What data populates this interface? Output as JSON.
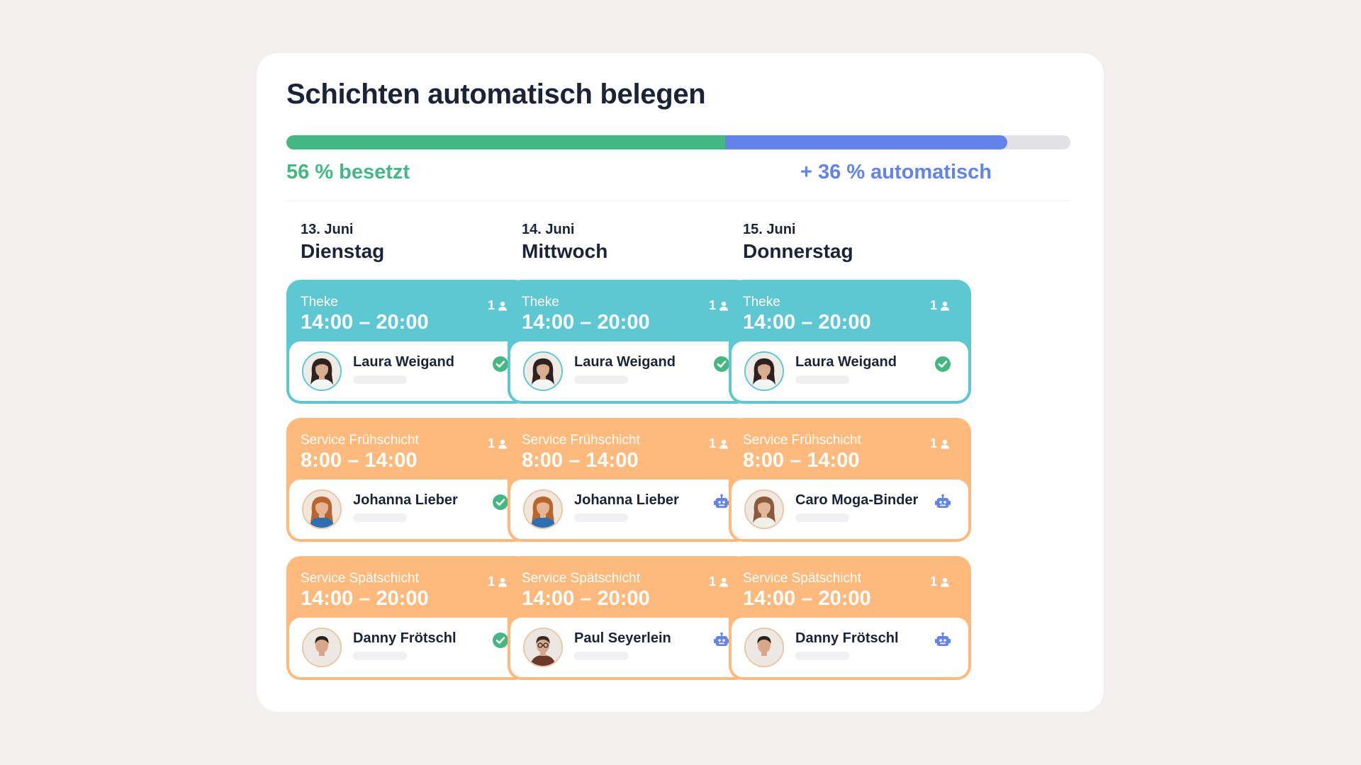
{
  "title": "Schichten automatisch belegen",
  "progress": {
    "besetzt_fraction": 0.56,
    "automatisch_fraction": 0.36,
    "besetzt_label": "56 % besetzt",
    "automatisch_label": "+ 36 % automatisch",
    "colors": {
      "besetzt": "#45b782",
      "automatisch": "#6283ea",
      "track": "#e2e2e6"
    }
  },
  "colors": {
    "theke": "#5dc7d2",
    "service": "#fdba7c",
    "text": "#1b2436",
    "panel": "#ffffff",
    "background": "#f2efee"
  },
  "days": [
    {
      "date": "13. Juni",
      "weekday": "Dienstag",
      "shifts": [
        {
          "role": "Theke",
          "time": "14:00 – 20:00",
          "count": "1",
          "color": "teal",
          "person": "Laura Weigand",
          "status": "confirmed"
        },
        {
          "role": "Service Frühschicht",
          "time": "8:00 – 14:00",
          "count": "1",
          "color": "orange",
          "person": "Johanna Lieber",
          "status": "confirmed"
        },
        {
          "role": "Service Spätschicht",
          "time": "14:00 – 20:00",
          "count": "1",
          "color": "orange",
          "person": "Danny Frötschl",
          "status": "confirmed"
        }
      ]
    },
    {
      "date": "14. Juni",
      "weekday": "Mittwoch",
      "shifts": [
        {
          "role": "Theke",
          "time": "14:00 – 20:00",
          "count": "1",
          "color": "teal",
          "person": "Laura Weigand",
          "status": "confirmed"
        },
        {
          "role": "Service Frühschicht",
          "time": "8:00 – 14:00",
          "count": "1",
          "color": "orange",
          "person": "Johanna Lieber",
          "status": "auto"
        },
        {
          "role": "Service Spätschicht",
          "time": "14:00 – 20:00",
          "count": "1",
          "color": "orange",
          "person": "Paul Seyerlein",
          "status": "auto"
        }
      ]
    },
    {
      "date": "15. Juni",
      "weekday": "Donnerstag",
      "shifts": [
        {
          "role": "Theke",
          "time": "14:00 – 20:00",
          "count": "1",
          "color": "teal",
          "person": "Laura Weigand",
          "status": "confirmed"
        },
        {
          "role": "Service Frühschicht",
          "time": "8:00 – 14:00",
          "count": "1",
          "color": "orange",
          "person": "Caro Moga-Binder",
          "status": "auto"
        },
        {
          "role": "Service Spätschicht",
          "time": "14:00 – 20:00",
          "count": "1",
          "color": "orange",
          "person": "Danny Frötschl",
          "status": "auto"
        }
      ]
    }
  ],
  "icons": {
    "count": "person-icon",
    "confirmed": "check-circle-icon",
    "auto": "robot-icon"
  }
}
